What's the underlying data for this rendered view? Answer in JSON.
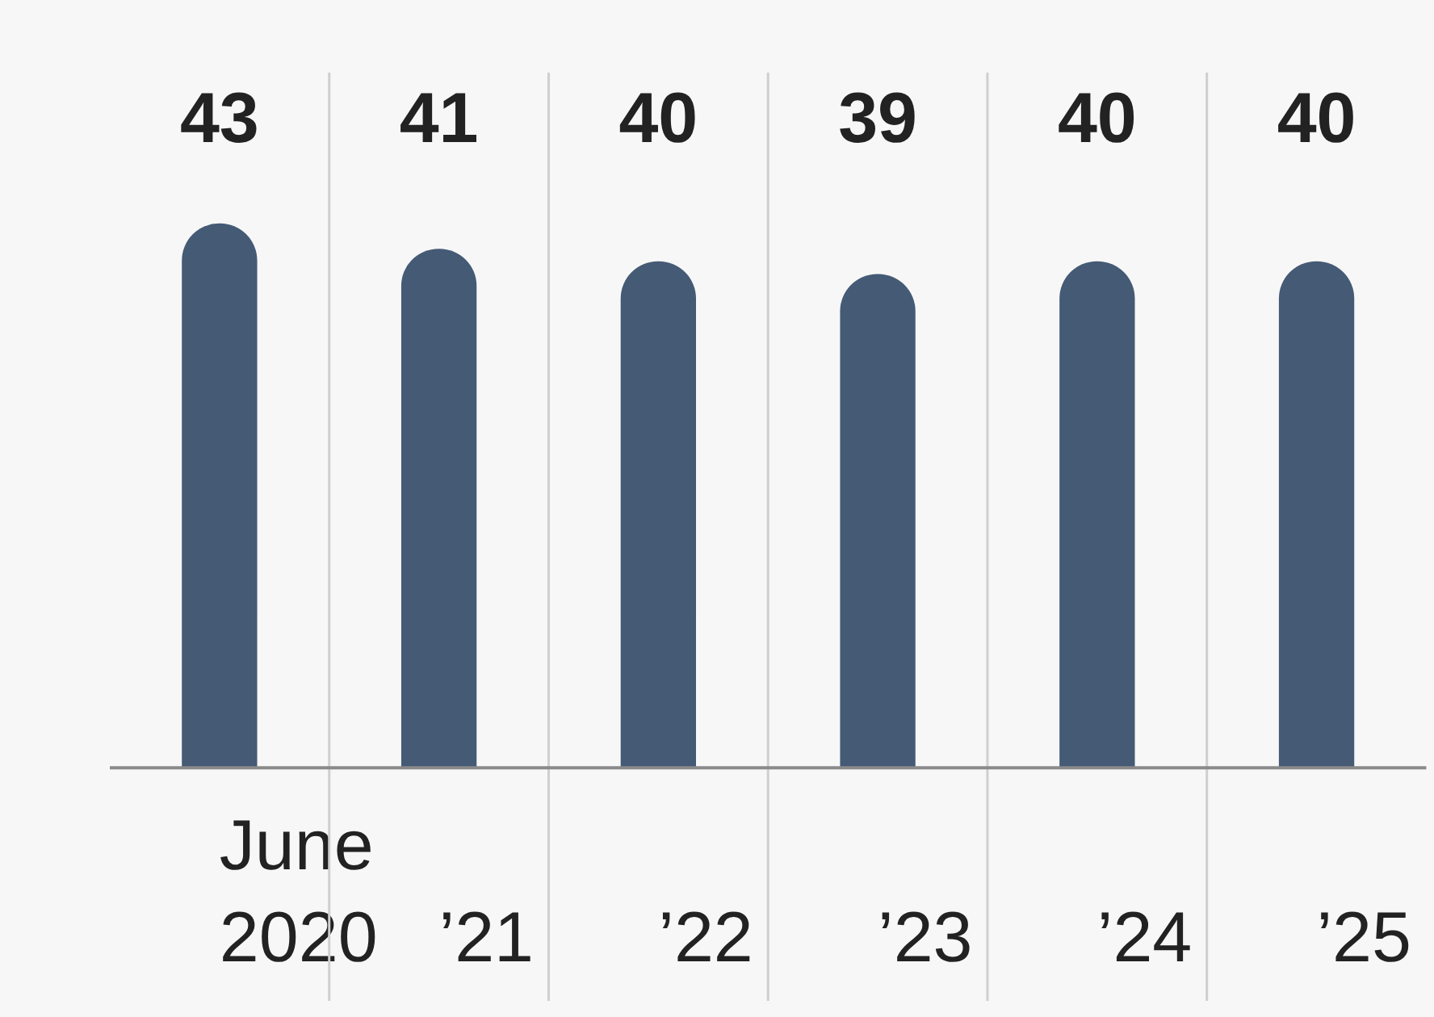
{
  "chart_data": {
    "type": "bar",
    "categories": [
      "June 2020",
      "’21",
      "’22",
      "’23",
      "’24",
      "’25"
    ],
    "values": [
      43,
      41,
      40,
      39,
      40,
      40
    ],
    "color": "#445a75",
    "data_labels": true,
    "grid": "x",
    "legend": false
  }
}
